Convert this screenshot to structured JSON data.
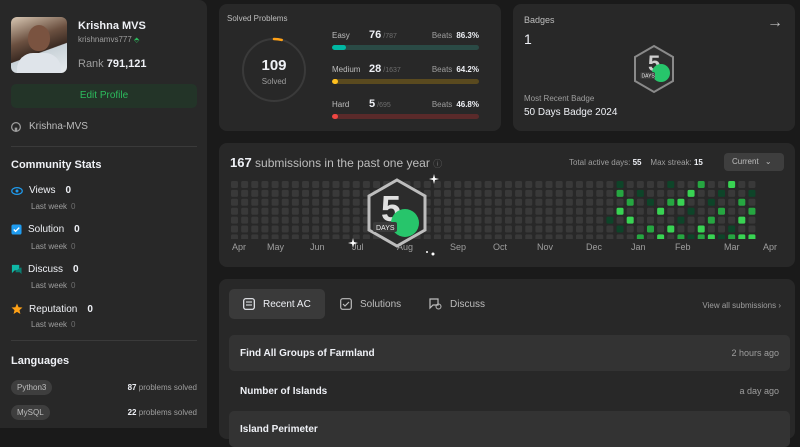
{
  "profile": {
    "name": "Krishna MVS",
    "handle": "krishnamvs777",
    "rank_label": "Rank",
    "rank_value": "791,121",
    "edit_label": "Edit Profile",
    "github": "Krishna-MVS"
  },
  "community": {
    "title": "Community Stats",
    "items": [
      {
        "label": "Views",
        "value": "0",
        "sub": "Last week",
        "sub_value": "0",
        "icon": "eye-icon",
        "color": "#1f9cf0"
      },
      {
        "label": "Solution",
        "value": "0",
        "sub": "Last week",
        "sub_value": "0",
        "icon": "solution-icon",
        "color": "#1f9cf0"
      },
      {
        "label": "Discuss",
        "value": "0",
        "sub": "Last week",
        "sub_value": "0",
        "icon": "discuss-icon",
        "color": "#0fb8a6"
      },
      {
        "label": "Reputation",
        "value": "0",
        "sub": "Last week",
        "sub_value": "0",
        "icon": "star-icon",
        "color": "#ffa116"
      }
    ]
  },
  "languages": {
    "title": "Languages",
    "items": [
      {
        "name": "Python3",
        "count": "87",
        "suffix": "problems solved"
      },
      {
        "name": "MySQL",
        "count": "22",
        "suffix": "problems solved"
      }
    ]
  },
  "solved": {
    "title": "Solved Problems",
    "total": "109",
    "total_label": "Solved",
    "ring_fraction": 0.04,
    "difficulties": [
      {
        "name": "Easy",
        "solved": "76",
        "total": "/787",
        "beats_label": "Beats",
        "beats": "86.3%",
        "fraction": 0.097,
        "color": "#00b8a3",
        "track": "#2a4a45"
      },
      {
        "name": "Medium",
        "solved": "28",
        "total": "/1637",
        "beats_label": "Beats",
        "beats": "64.2%",
        "fraction": 0.017,
        "color": "#ffc01e",
        "track": "#5a4a1f"
      },
      {
        "name": "Hard",
        "solved": "5",
        "total": "/695",
        "beats_label": "Beats",
        "beats": "46.8%",
        "fraction": 0.007,
        "color": "#ef4743",
        "track": "#5a2a2a"
      }
    ]
  },
  "badges": {
    "title": "Badges",
    "count": "1",
    "recent_label": "Most Recent Badge",
    "recent_name": "50 Days Badge 2024",
    "badge_text": "DAYS"
  },
  "submissions": {
    "count": "167",
    "text": "submissions in the past one year",
    "active_label": "Total active days:",
    "active_value": "55",
    "streak_label": "Max streak:",
    "streak_value": "15",
    "dropdown": "Current",
    "months": [
      "Apr",
      "May",
      "Jun",
      "Jul",
      "Aug",
      "Sep",
      "Oct",
      "Nov",
      "Dec",
      "Jan",
      "Feb",
      "Mar",
      "Apr"
    ]
  },
  "tabs": {
    "items": [
      {
        "label": "Recent AC",
        "icon": "list-icon"
      },
      {
        "label": "Solutions",
        "icon": "solution-icon"
      },
      {
        "label": "Discuss",
        "icon": "discuss-icon"
      }
    ],
    "view_all": "View all submissions"
  },
  "recent": [
    {
      "title": "Find All Groups of Farmland",
      "time": "2 hours ago"
    },
    {
      "title": "Number of Islands",
      "time": "a day ago"
    },
    {
      "title": "Island Perimeter",
      "time": ""
    }
  ]
}
